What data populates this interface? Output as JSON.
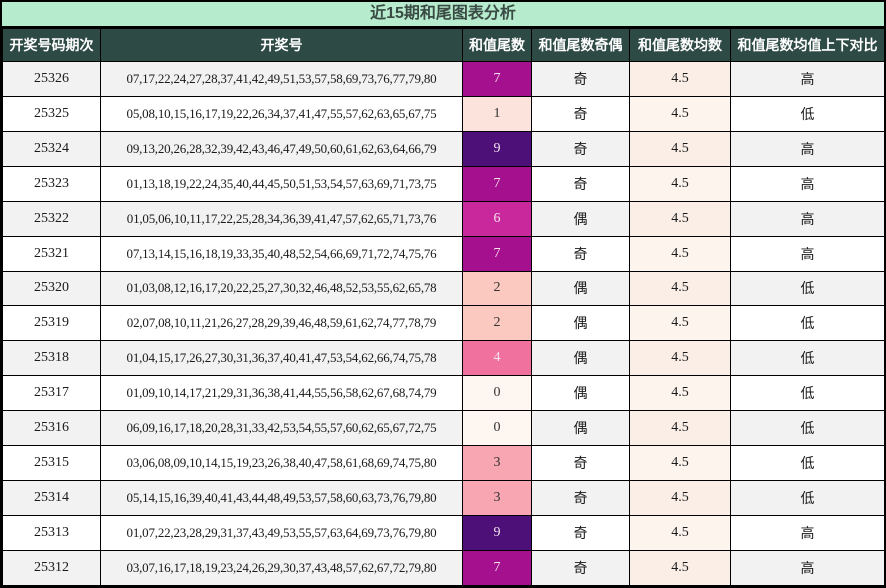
{
  "title": "近15期和尾图表分析",
  "columns": [
    "开奖号码期次",
    "开奖号",
    "和值尾数",
    "和值尾数奇偶",
    "和值尾数均数",
    "和值尾数均值上下对比"
  ],
  "rows": [
    {
      "period": "25326",
      "numbers": "07,17,22,24,27,28,37,41,42,49,51,53,57,58,69,73,76,77,79,80",
      "tail": "7",
      "parity": "奇",
      "mean": "4.5",
      "compare": "高"
    },
    {
      "period": "25325",
      "numbers": "05,08,10,15,16,17,19,22,26,34,37,41,47,55,57,62,63,65,67,75",
      "tail": "1",
      "parity": "奇",
      "mean": "4.5",
      "compare": "低"
    },
    {
      "period": "25324",
      "numbers": "09,13,20,26,28,32,39,42,43,46,47,49,50,60,61,62,63,64,66,79",
      "tail": "9",
      "parity": "奇",
      "mean": "4.5",
      "compare": "高"
    },
    {
      "period": "25323",
      "numbers": "01,13,18,19,22,24,35,40,44,45,50,51,53,54,57,63,69,71,73,75",
      "tail": "7",
      "parity": "奇",
      "mean": "4.5",
      "compare": "高"
    },
    {
      "period": "25322",
      "numbers": "01,05,06,10,11,17,22,25,28,34,36,39,41,47,57,62,65,71,73,76",
      "tail": "6",
      "parity": "偶",
      "mean": "4.5",
      "compare": "高"
    },
    {
      "period": "25321",
      "numbers": "07,13,14,15,16,18,19,33,35,40,48,52,54,66,69,71,72,74,75,76",
      "tail": "7",
      "parity": "奇",
      "mean": "4.5",
      "compare": "高"
    },
    {
      "period": "25320",
      "numbers": "01,03,08,12,16,17,20,22,25,27,30,32,46,48,52,53,55,62,65,78",
      "tail": "2",
      "parity": "偶",
      "mean": "4.5",
      "compare": "低"
    },
    {
      "period": "25319",
      "numbers": "02,07,08,10,11,21,26,27,28,29,39,46,48,59,61,62,74,77,78,79",
      "tail": "2",
      "parity": "偶",
      "mean": "4.5",
      "compare": "低"
    },
    {
      "period": "25318",
      "numbers": "01,04,15,17,26,27,30,31,36,37,40,41,47,53,54,62,66,74,75,78",
      "tail": "4",
      "parity": "偶",
      "mean": "4.5",
      "compare": "低"
    },
    {
      "period": "25317",
      "numbers": "01,09,10,14,17,21,29,31,36,38,41,44,55,56,58,62,67,68,74,79",
      "tail": "0",
      "parity": "偶",
      "mean": "4.5",
      "compare": "低"
    },
    {
      "period": "25316",
      "numbers": "06,09,16,17,18,20,28,31,33,42,53,54,55,57,60,62,65,67,72,75",
      "tail": "0",
      "parity": "偶",
      "mean": "4.5",
      "compare": "低"
    },
    {
      "period": "25315",
      "numbers": "03,06,08,09,10,14,15,19,23,26,38,40,47,58,61,68,69,74,75,80",
      "tail": "3",
      "parity": "奇",
      "mean": "4.5",
      "compare": "低"
    },
    {
      "period": "25314",
      "numbers": "05,14,15,16,39,40,41,43,44,48,49,53,57,58,60,63,73,76,79,80",
      "tail": "3",
      "parity": "奇",
      "mean": "4.5",
      "compare": "低"
    },
    {
      "period": "25313",
      "numbers": "01,07,22,23,28,29,31,37,43,49,53,55,57,63,64,69,73,76,79,80",
      "tail": "9",
      "parity": "奇",
      "mean": "4.5",
      "compare": "高"
    },
    {
      "period": "25312",
      "numbers": "03,07,16,17,18,19,23,24,26,29,30,37,43,48,57,62,67,72,79,80",
      "tail": "7",
      "parity": "奇",
      "mean": "4.5",
      "compare": "高"
    }
  ],
  "colors": {
    "title_bg": "#b6ebcd",
    "title_text": "#3a4a44",
    "header_bg": "#2e4a44",
    "header_text": "#ffffff",
    "stripe_bg": "#f2f2f2",
    "mean_bg_stripe": "#fbeee7",
    "mean_bg_plain": "#fdf4ee",
    "tail_scale": {
      "0": "#fef6f1",
      "1": "#fce4dd",
      "2": "#fbc9c0",
      "3": "#f7a6b2",
      "4": "#f0709e",
      "6": "#c9289c",
      "7": "#a5108f",
      "9": "#4c1078"
    },
    "tail_text_dark": "#333333",
    "tail_text_light": "#f6e3ee",
    "light_text_tails": [
      "4",
      "6",
      "7",
      "9"
    ]
  },
  "chart_data": {
    "type": "heatmap",
    "title": "近15期和尾图表分析",
    "categories": [
      "25326",
      "25325",
      "25324",
      "25323",
      "25322",
      "25321",
      "25320",
      "25319",
      "25318",
      "25317",
      "25316",
      "25315",
      "25314",
      "25313",
      "25312"
    ],
    "values": [
      7,
      1,
      9,
      7,
      6,
      7,
      2,
      2,
      4,
      0,
      0,
      3,
      3,
      9,
      7
    ],
    "mean": 4.5,
    "parity": [
      "奇",
      "奇",
      "奇",
      "奇",
      "偶",
      "奇",
      "偶",
      "偶",
      "偶",
      "偶",
      "偶",
      "奇",
      "奇",
      "奇",
      "奇"
    ],
    "compare": [
      "高",
      "低",
      "高",
      "高",
      "高",
      "高",
      "低",
      "低",
      "低",
      "低",
      "低",
      "低",
      "低",
      "高",
      "高"
    ],
    "ylim": [
      0,
      9
    ]
  }
}
